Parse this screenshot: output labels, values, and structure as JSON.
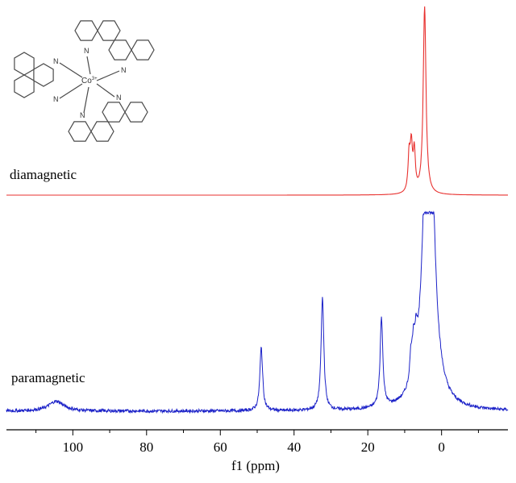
{
  "chart_data": {
    "type": "line",
    "xlabel": "f1 (ppm)",
    "xlim": [
      118,
      -18
    ],
    "x_ticks": [
      100,
      80,
      60,
      40,
      20,
      0
    ],
    "x_tick_labels": [
      "100",
      "80",
      "60",
      "40",
      "20",
      "0"
    ],
    "x_reversed": true,
    "grid": false,
    "series": [
      {
        "name": "diamagnetic",
        "color": "#e8312f",
        "baseline_noise": 0.0,
        "peaks": [
          {
            "x": 8.8,
            "height": 0.19,
            "width": 0.35
          },
          {
            "x": 8.2,
            "height": 0.23,
            "width": 0.35
          },
          {
            "x": 7.4,
            "height": 0.21,
            "width": 0.35
          },
          {
            "x": 4.6,
            "height": 1.0,
            "width": 0.45
          }
        ]
      },
      {
        "name": "paramagnetic",
        "color": "#1c22c8",
        "baseline_noise": 0.008,
        "peaks": [
          {
            "x": 104.5,
            "height": 0.05,
            "width": 2.5
          },
          {
            "x": 48.9,
            "height": 0.32,
            "width": 0.45
          },
          {
            "x": 32.3,
            "height": 0.57,
            "width": 0.45
          },
          {
            "x": 16.3,
            "height": 0.45,
            "width": 0.45
          },
          {
            "x": 8.3,
            "height": 0.13,
            "width": 0.4
          },
          {
            "x": 7.6,
            "height": 0.16,
            "width": 0.4
          },
          {
            "x": 6.9,
            "height": 0.14,
            "width": 0.4
          },
          {
            "x": 4.0,
            "height": 1.0,
            "width": 1.4
          },
          {
            "x": 3.0,
            "height": 1.0,
            "width": 1.4
          }
        ]
      }
    ]
  },
  "molecule": {
    "metal_label": "Co",
    "charge_label": "3+",
    "nitrogen_label": "N"
  }
}
